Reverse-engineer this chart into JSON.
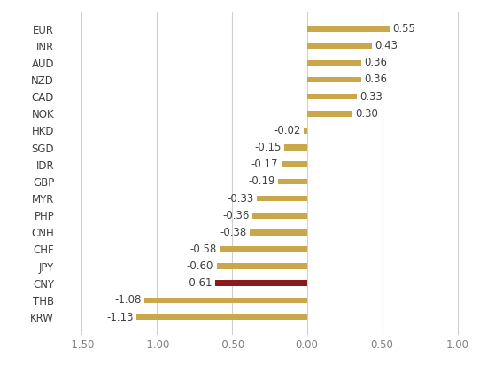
{
  "categories": [
    "KRW",
    "THB",
    "CNY",
    "JPY",
    "CHF",
    "CNH",
    "PHP",
    "MYR",
    "GBP",
    "IDR",
    "SGD",
    "HKD",
    "NOK",
    "CAD",
    "NZD",
    "AUD",
    "INR",
    "EUR"
  ],
  "values": [
    -1.13,
    -1.08,
    -0.61,
    -0.6,
    -0.58,
    -0.38,
    -0.36,
    -0.33,
    -0.19,
    -0.17,
    -0.15,
    -0.02,
    0.3,
    0.33,
    0.36,
    0.36,
    0.43,
    0.55
  ],
  "bar_colors": [
    "#c8a84b",
    "#c8a84b",
    "#8b1a1a",
    "#c8a84b",
    "#c8a84b",
    "#c8a84b",
    "#c8a84b",
    "#c8a84b",
    "#c8a84b",
    "#c8a84b",
    "#c8a84b",
    "#c8a84b",
    "#c8a84b",
    "#c8a84b",
    "#c8a84b",
    "#c8a84b",
    "#c8a84b",
    "#c8a84b"
  ],
  "labels": [
    "-1.13",
    "-1.08",
    "-0.61",
    "-0.60",
    "-0.58",
    "-0.38",
    "-0.36",
    "-0.33",
    "-0.19",
    "-0.17",
    "-0.15",
    "-0.02",
    "0.30",
    "0.33",
    "0.36",
    "0.36",
    "0.43",
    "0.55"
  ],
  "xlim": [
    -1.65,
    1.1
  ],
  "xticks": [
    -1.5,
    -1.0,
    -0.5,
    0.0,
    0.5,
    1.0
  ],
  "xtick_labels": [
    "-1.50",
    "-1.00",
    "-0.50",
    "0.00",
    "0.50",
    "1.00"
  ],
  "grid_color": "#d0d0d0",
  "bar_height": 0.35,
  "background_color": "#ffffff",
  "label_fontsize": 8.5,
  "tick_fontsize": 8.5,
  "figsize": [
    5.5,
    4.2
  ],
  "dpi": 100
}
